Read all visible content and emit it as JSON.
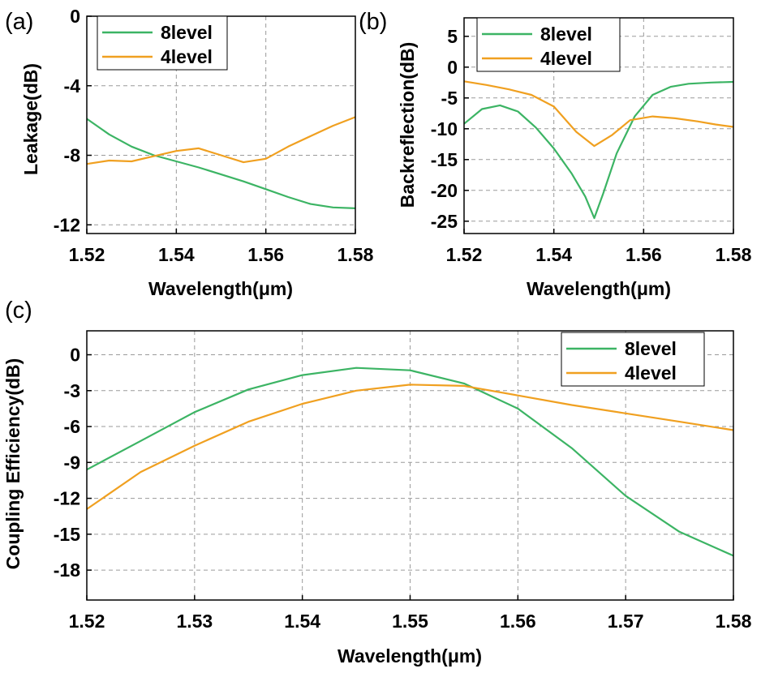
{
  "panels": [
    {
      "tag": "(a)",
      "xlabel": "Wavelength(μm)",
      "ylabel": "Leakage(dB)"
    },
    {
      "tag": "(b)",
      "xlabel": "Wavelength(μm)",
      "ylabel": "Backreflection(dB)"
    },
    {
      "tag": "(c)",
      "xlabel": "Wavelength(μm)",
      "ylabel": "Coupling Efficiency(dB)"
    }
  ],
  "colors": {
    "8level": "#3cb464",
    "4level": "#f0a020"
  },
  "chart_data": [
    {
      "type": "line",
      "title": "",
      "xlabel": "Wavelength(μm)",
      "ylabel": "Leakage(dB)",
      "xlim": [
        1.52,
        1.58
      ],
      "ylim": [
        -12.5,
        0
      ],
      "xticks": [
        "1.52",
        "1.54",
        "1.56",
        "1.58"
      ],
      "yticks": [
        "0",
        "-4",
        "-8",
        "-12"
      ],
      "grid": true,
      "legend": "top-left",
      "series": [
        {
          "name": "8level",
          "x": [
            1.52,
            1.525,
            1.53,
            1.535,
            1.54,
            1.545,
            1.55,
            1.555,
            1.56,
            1.565,
            1.57,
            1.575,
            1.58
          ],
          "y": [
            -5.9,
            -6.8,
            -7.5,
            -8.0,
            -8.35,
            -8.7,
            -9.1,
            -9.5,
            -9.95,
            -10.4,
            -10.8,
            -11.0,
            -11.05
          ]
        },
        {
          "name": "4level",
          "x": [
            1.52,
            1.525,
            1.53,
            1.535,
            1.54,
            1.545,
            1.55,
            1.555,
            1.56,
            1.565,
            1.57,
            1.575,
            1.58
          ],
          "y": [
            -8.5,
            -8.3,
            -8.35,
            -8.05,
            -7.75,
            -7.6,
            -8.0,
            -8.4,
            -8.2,
            -7.5,
            -6.9,
            -6.3,
            -5.8
          ]
        }
      ]
    },
    {
      "type": "line",
      "title": "",
      "xlabel": "Wavelength(μm)",
      "ylabel": "Backreflection(dB)",
      "xlim": [
        1.52,
        1.58
      ],
      "ylim": [
        -27,
        8
      ],
      "xticks": [
        "1.52",
        "1.54",
        "1.56",
        "1.58"
      ],
      "yticks": [
        "5",
        "0",
        "-5",
        "-10",
        "-15",
        "-20",
        "-25"
      ],
      "grid": true,
      "legend": "top-left",
      "series": [
        {
          "name": "8level",
          "x": [
            1.52,
            1.524,
            1.528,
            1.532,
            1.536,
            1.54,
            1.544,
            1.547,
            1.549,
            1.551,
            1.554,
            1.558,
            1.562,
            1.566,
            1.57,
            1.575,
            1.58
          ],
          "y": [
            -9.2,
            -6.8,
            -6.2,
            -7.2,
            -9.8,
            -13.2,
            -17.3,
            -21.0,
            -24.5,
            -20.5,
            -14.0,
            -8.0,
            -4.5,
            -3.2,
            -2.7,
            -2.5,
            -2.4
          ]
        },
        {
          "name": "4level",
          "x": [
            1.52,
            1.525,
            1.53,
            1.535,
            1.54,
            1.545,
            1.549,
            1.553,
            1.557,
            1.562,
            1.567,
            1.572,
            1.576,
            1.58
          ],
          "y": [
            -2.3,
            -2.9,
            -3.6,
            -4.5,
            -6.4,
            -10.5,
            -12.8,
            -11.0,
            -8.6,
            -8.0,
            -8.3,
            -8.8,
            -9.3,
            -9.7
          ]
        }
      ]
    },
    {
      "type": "line",
      "title": "",
      "xlabel": "Wavelength(μm)",
      "ylabel": "Coupling Efficiency(dB)",
      "xlim": [
        1.52,
        1.58
      ],
      "ylim": [
        -20.5,
        2
      ],
      "xticks": [
        "1.52",
        "1.53",
        "1.54",
        "1.55",
        "1.56",
        "1.57",
        "1.58"
      ],
      "yticks": [
        "0",
        "-3",
        "-6",
        "-9",
        "-12",
        "-15",
        "-18"
      ],
      "grid": true,
      "legend": "top-right",
      "series": [
        {
          "name": "8level",
          "x": [
            1.52,
            1.525,
            1.53,
            1.535,
            1.54,
            1.545,
            1.55,
            1.555,
            1.56,
            1.565,
            1.57,
            1.575,
            1.58
          ],
          "y": [
            -9.6,
            -7.2,
            -4.8,
            -2.9,
            -1.7,
            -1.1,
            -1.3,
            -2.4,
            -4.5,
            -7.8,
            -11.8,
            -14.8,
            -16.8
          ]
        },
        {
          "name": "4level",
          "x": [
            1.52,
            1.525,
            1.53,
            1.535,
            1.54,
            1.545,
            1.55,
            1.555,
            1.56,
            1.565,
            1.57,
            1.575,
            1.58
          ],
          "y": [
            -12.9,
            -9.8,
            -7.6,
            -5.6,
            -4.1,
            -3.0,
            -2.5,
            -2.6,
            -3.4,
            -4.2,
            -4.9,
            -5.6,
            -6.3
          ]
        }
      ]
    }
  ]
}
